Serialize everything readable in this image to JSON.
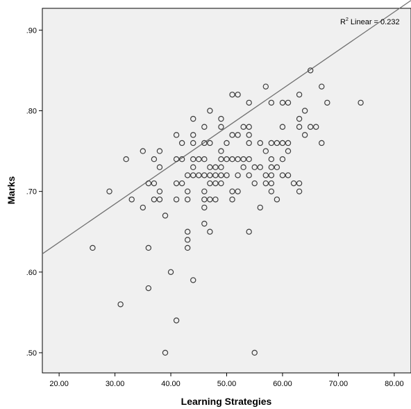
{
  "chart_data": {
    "type": "scatter",
    "xlabel": "Learning Strategies",
    "ylabel": "Marks",
    "xlim": [
      17,
      83
    ],
    "ylim": [
      0.475,
      0.927
    ],
    "x_ticks": [
      20,
      30,
      40,
      50,
      60,
      70,
      80
    ],
    "y_ticks": [
      0.5,
      0.6,
      0.7,
      0.8,
      0.9
    ],
    "x_tick_labels": [
      "20.00",
      "30.00",
      "40.00",
      "50.00",
      "60.00",
      "70.00",
      "80.00"
    ],
    "y_tick_labels": [
      ".50",
      ".60",
      ".70",
      ".80",
      ".90"
    ],
    "annotation": {
      "r2_prefix": "R",
      "r2_sup": "2",
      "r2_text": " Linear = 0.232"
    },
    "fit_line": {
      "intercept": 0.5417,
      "slope": 0.00476
    },
    "grid": false,
    "background": "#f0f0f0",
    "marker_color": "#3c3c3c",
    "line_color": "#707070",
    "points": [
      [
        26,
        0.63
      ],
      [
        29,
        0.7
      ],
      [
        31,
        0.56
      ],
      [
        32,
        0.74
      ],
      [
        33,
        0.69
      ],
      [
        35,
        0.75
      ],
      [
        35,
        0.68
      ],
      [
        36,
        0.71
      ],
      [
        36,
        0.63
      ],
      [
        36,
        0.58
      ],
      [
        37,
        0.71
      ],
      [
        37,
        0.74
      ],
      [
        37,
        0.69
      ],
      [
        38,
        0.7
      ],
      [
        38,
        0.69
      ],
      [
        38,
        0.73
      ],
      [
        38,
        0.75
      ],
      [
        39,
        0.67
      ],
      [
        39,
        0.5
      ],
      [
        40,
        0.6
      ],
      [
        41,
        0.77
      ],
      [
        41,
        0.74
      ],
      [
        41,
        0.71
      ],
      [
        41,
        0.69
      ],
      [
        41,
        0.54
      ],
      [
        42,
        0.76
      ],
      [
        42,
        0.74
      ],
      [
        42,
        0.71
      ],
      [
        43,
        0.72
      ],
      [
        43,
        0.7
      ],
      [
        43,
        0.69
      ],
      [
        43,
        0.65
      ],
      [
        43,
        0.64
      ],
      [
        43,
        0.63
      ],
      [
        44,
        0.79
      ],
      [
        44,
        0.77
      ],
      [
        44,
        0.76
      ],
      [
        44,
        0.74
      ],
      [
        44,
        0.73
      ],
      [
        44,
        0.72
      ],
      [
        44,
        0.59
      ],
      [
        45,
        0.72
      ],
      [
        45,
        0.74
      ],
      [
        46,
        0.78
      ],
      [
        46,
        0.76
      ],
      [
        46,
        0.74
      ],
      [
        46,
        0.72
      ],
      [
        46,
        0.7
      ],
      [
        46,
        0.69
      ],
      [
        46,
        0.68
      ],
      [
        46,
        0.66
      ],
      [
        47,
        0.8
      ],
      [
        47,
        0.76
      ],
      [
        47,
        0.73
      ],
      [
        47,
        0.72
      ],
      [
        47,
        0.71
      ],
      [
        47,
        0.69
      ],
      [
        47,
        0.65
      ],
      [
        48,
        0.73
      ],
      [
        48,
        0.72
      ],
      [
        48,
        0.71
      ],
      [
        48,
        0.69
      ],
      [
        49,
        0.79
      ],
      [
        49,
        0.78
      ],
      [
        49,
        0.75
      ],
      [
        49,
        0.74
      ],
      [
        49,
        0.73
      ],
      [
        49,
        0.72
      ],
      [
        49,
        0.71
      ],
      [
        50,
        0.76
      ],
      [
        50,
        0.74
      ],
      [
        50,
        0.72
      ],
      [
        51,
        0.82
      ],
      [
        51,
        0.77
      ],
      [
        51,
        0.74
      ],
      [
        51,
        0.7
      ],
      [
        51,
        0.69
      ],
      [
        52,
        0.82
      ],
      [
        52,
        0.77
      ],
      [
        52,
        0.74
      ],
      [
        52,
        0.72
      ],
      [
        52,
        0.7
      ],
      [
        53,
        0.78
      ],
      [
        53,
        0.74
      ],
      [
        53,
        0.73
      ],
      [
        54,
        0.81
      ],
      [
        54,
        0.78
      ],
      [
        54,
        0.77
      ],
      [
        54,
        0.76
      ],
      [
        54,
        0.74
      ],
      [
        54,
        0.72
      ],
      [
        54,
        0.65
      ],
      [
        55,
        0.73
      ],
      [
        55,
        0.71
      ],
      [
        55,
        0.5
      ],
      [
        56,
        0.76
      ],
      [
        56,
        0.73
      ],
      [
        56,
        0.68
      ],
      [
        57,
        0.83
      ],
      [
        57,
        0.75
      ],
      [
        57,
        0.72
      ],
      [
        57,
        0.71
      ],
      [
        58,
        0.81
      ],
      [
        58,
        0.76
      ],
      [
        58,
        0.74
      ],
      [
        58,
        0.73
      ],
      [
        58,
        0.72
      ],
      [
        58,
        0.71
      ],
      [
        58,
        0.7
      ],
      [
        59,
        0.76
      ],
      [
        59,
        0.73
      ],
      [
        59,
        0.69
      ],
      [
        60,
        0.81
      ],
      [
        60,
        0.78
      ],
      [
        60,
        0.76
      ],
      [
        60,
        0.74
      ],
      [
        60,
        0.72
      ],
      [
        61,
        0.81
      ],
      [
        61,
        0.76
      ],
      [
        61,
        0.75
      ],
      [
        61,
        0.72
      ],
      [
        62,
        0.71
      ],
      [
        63,
        0.82
      ],
      [
        63,
        0.79
      ],
      [
        63,
        0.78
      ],
      [
        63,
        0.71
      ],
      [
        63,
        0.7
      ],
      [
        64,
        0.8
      ],
      [
        64,
        0.77
      ],
      [
        65,
        0.85
      ],
      [
        65,
        0.78
      ],
      [
        66,
        0.78
      ],
      [
        67,
        0.83
      ],
      [
        67,
        0.76
      ],
      [
        68,
        0.81
      ],
      [
        74,
        0.81
      ]
    ]
  }
}
